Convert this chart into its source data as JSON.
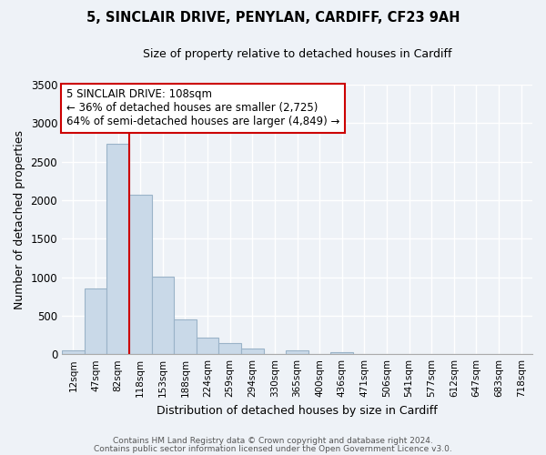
{
  "title": "5, SINCLAIR DRIVE, PENYLAN, CARDIFF, CF23 9AH",
  "subtitle": "Size of property relative to detached houses in Cardiff",
  "xlabel": "Distribution of detached houses by size in Cardiff",
  "ylabel": "Number of detached properties",
  "bar_labels": [
    "12sqm",
    "47sqm",
    "82sqm",
    "118sqm",
    "153sqm",
    "188sqm",
    "224sqm",
    "259sqm",
    "294sqm",
    "330sqm",
    "365sqm",
    "400sqm",
    "436sqm",
    "471sqm",
    "506sqm",
    "541sqm",
    "577sqm",
    "612sqm",
    "647sqm",
    "683sqm",
    "718sqm"
  ],
  "bar_values": [
    55,
    850,
    2730,
    2075,
    1010,
    455,
    210,
    148,
    75,
    0,
    50,
    0,
    25,
    0,
    0,
    0,
    0,
    0,
    0,
    0,
    0
  ],
  "bar_color": "#c9d9e8",
  "bar_edge_color": "#9ab3c8",
  "marker_color": "#cc0000",
  "marker_bar_index": 3,
  "annotation_title": "5 SINCLAIR DRIVE: 108sqm",
  "annotation_line1": "← 36% of detached houses are smaller (2,725)",
  "annotation_line2": "64% of semi-detached houses are larger (4,849) →",
  "annotation_box_color": "#ffffff",
  "annotation_box_edge": "#cc0000",
  "ylim": [
    0,
    3500
  ],
  "yticks": [
    0,
    500,
    1000,
    1500,
    2000,
    2500,
    3000,
    3500
  ],
  "footer1": "Contains HM Land Registry data © Crown copyright and database right 2024.",
  "footer2": "Contains public sector information licensed under the Open Government Licence v3.0.",
  "bg_color": "#eef2f7",
  "grid_color": "#ffffff",
  "title_fontsize": 10.5,
  "subtitle_fontsize": 9,
  "ylabel_fontsize": 9,
  "xlabel_fontsize": 9,
  "tick_fontsize": 7.5,
  "footer_fontsize": 6.5,
  "ann_fontsize": 8.5
}
